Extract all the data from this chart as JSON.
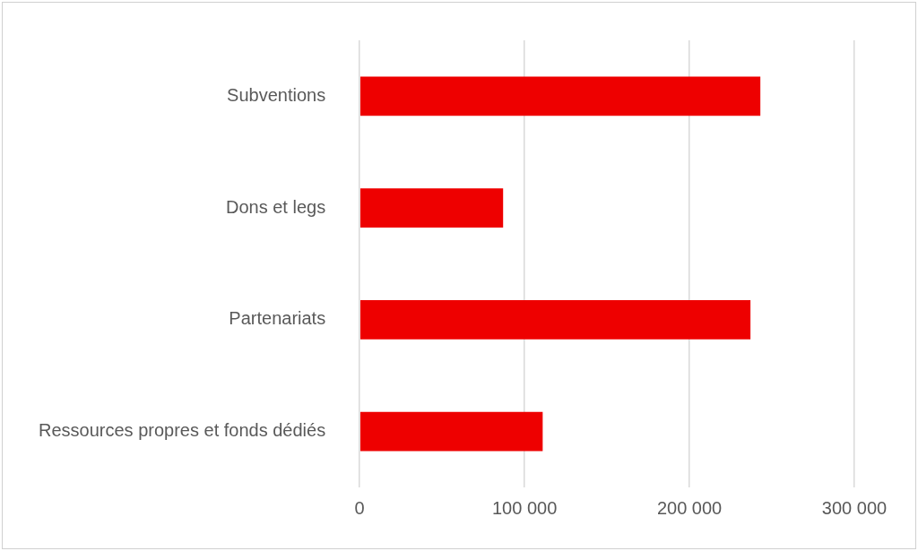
{
  "chart_data": {
    "type": "bar",
    "orientation": "horizontal",
    "categories": [
      "Subventions",
      "Dons et legs",
      "Partenariats",
      "Ressources propres et fonds dédiés"
    ],
    "values": [
      243000,
      87000,
      237000,
      111000
    ],
    "color": "#ee0000",
    "xlim": [
      0,
      300000
    ],
    "xticks": [
      0,
      {
        "value": 100000,
        "label": "100 000"
      },
      {
        "value": 200000,
        "label": "200 000"
      },
      {
        "value": 300000,
        "label": "300 000"
      }
    ],
    "grid": "x",
    "legend": false
  }
}
